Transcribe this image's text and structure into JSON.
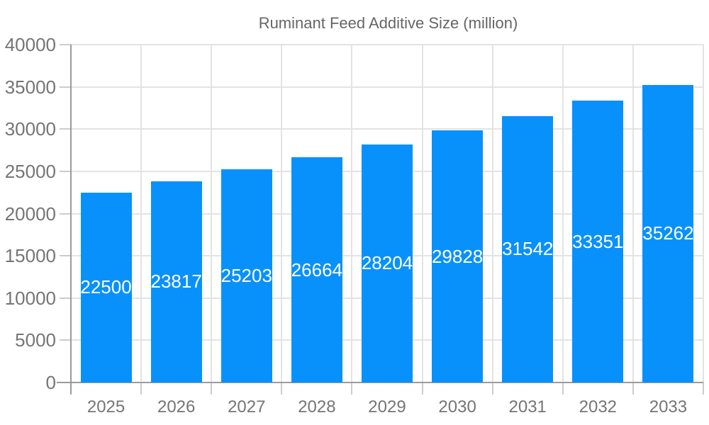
{
  "chart_data": {
    "type": "bar",
    "title": "Ruminant Feed Additive Size (million)",
    "legend": [
      "Ruminant Feed Additive Size (million)"
    ],
    "legend_position": "top",
    "grid": true,
    "categories": [
      "2025",
      "2026",
      "2027",
      "2028",
      "2029",
      "2030",
      "2031",
      "2032",
      "2033"
    ],
    "values": [
      22500,
      23817,
      25203,
      26664,
      28204,
      29828,
      31542,
      33351,
      35262
    ],
    "value_labels": [
      "22500",
      "23817",
      "25203",
      "26664",
      "28204",
      "29828",
      "31542",
      "33351",
      "35262"
    ],
    "xlabel": "",
    "ylabel": "",
    "ylim": [
      0,
      40000
    ],
    "ytick_step": 5000,
    "yticks": [
      0,
      5000,
      10000,
      15000,
      20000,
      25000,
      30000,
      35000,
      40000
    ],
    "colors": {
      "bar": "#0991fb",
      "bar_label": "#ffffff",
      "axis_text": "#757575",
      "legend_text": "#666666",
      "grid": "#e3e3e3",
      "tick": "#cccccc",
      "axis_line": "#9b9b9b"
    }
  }
}
